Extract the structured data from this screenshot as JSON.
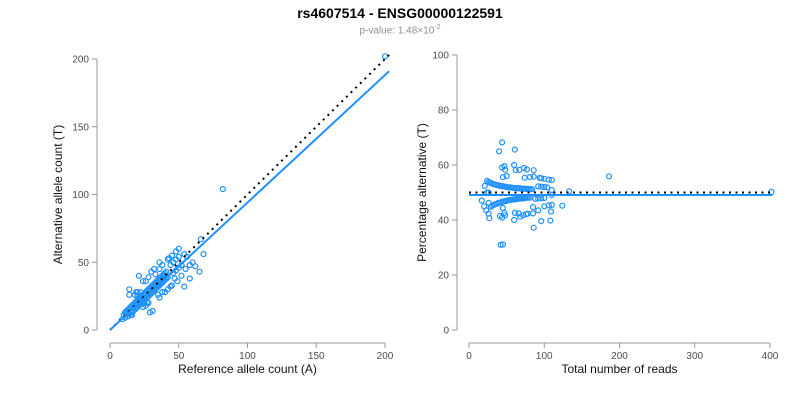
{
  "header": {
    "title": "rs4607514 - ENSG00000122591",
    "subtitle_prefix": "p-value: 1.48×10",
    "subtitle_exponent": "-2"
  },
  "colors": {
    "point_blue": "#1E90FF",
    "line_blue": "#1E90FF",
    "line_black": "#000000",
    "axis_gray": "#999999",
    "tick_label_gray": "#4d4d4d",
    "subtitle_gray": "#8f8f8f"
  },
  "chart_data": [
    {
      "type": "scatter",
      "name": "allele-count-scatter",
      "xlabel": "Reference allele count (A)",
      "ylabel": "Alternative allele count (T)",
      "xlim": [
        0,
        200
      ],
      "ylim": [
        0,
        200
      ],
      "xticks": [
        0,
        50,
        100,
        150,
        200
      ],
      "yticks": [
        0,
        50,
        100,
        150,
        200
      ],
      "grid": false,
      "legend": "none",
      "marker": {
        "shape": "open-circle",
        "color": "#1E90FF",
        "radius": 2.5
      },
      "lines": [
        {
          "name": "identity-line",
          "style": "dotted",
          "color": "#000000",
          "points": [
            [
              0,
              0
            ],
            [
              203,
              203
            ]
          ]
        },
        {
          "name": "fit-line",
          "style": "solid",
          "color": "#1E90FF",
          "points": [
            [
              0,
              0
            ],
            [
              203,
              191
            ]
          ]
        }
      ],
      "points": [
        [
          9,
          8
        ],
        [
          10,
          11
        ],
        [
          11,
          9
        ],
        [
          12,
          12
        ],
        [
          13,
          10
        ],
        [
          12,
          14
        ],
        [
          14,
          12
        ],
        [
          13,
          15
        ],
        [
          15,
          11
        ],
        [
          14,
          16
        ],
        [
          16,
          13
        ],
        [
          15,
          17
        ],
        [
          17,
          14
        ],
        [
          16,
          18
        ],
        [
          18,
          15
        ],
        [
          17,
          19
        ],
        [
          19,
          16
        ],
        [
          18,
          20
        ],
        [
          20,
          17
        ],
        [
          19,
          21
        ],
        [
          21,
          18
        ],
        [
          20,
          22
        ],
        [
          16,
          11
        ],
        [
          11,
          13
        ],
        [
          13,
          13
        ],
        [
          22,
          19
        ],
        [
          21,
          23
        ],
        [
          23,
          20
        ],
        [
          22,
          24
        ],
        [
          24,
          21
        ],
        [
          23,
          25
        ],
        [
          25,
          22
        ],
        [
          24,
          26
        ],
        [
          26,
          23
        ],
        [
          25,
          27
        ],
        [
          27,
          24
        ],
        [
          26,
          28
        ],
        [
          28,
          25
        ],
        [
          27,
          29
        ],
        [
          29,
          26
        ],
        [
          28,
          30
        ],
        [
          30,
          27
        ],
        [
          29,
          31
        ],
        [
          25,
          20
        ],
        [
          20,
          25
        ],
        [
          27,
          20
        ],
        [
          20,
          28
        ],
        [
          29,
          13
        ],
        [
          14,
          30
        ],
        [
          24,
          17
        ],
        [
          18,
          26
        ],
        [
          26,
          18
        ],
        [
          19,
          28
        ],
        [
          28,
          20
        ],
        [
          22,
          28
        ],
        [
          31,
          28
        ],
        [
          30,
          32
        ],
        [
          32,
          29
        ],
        [
          31,
          33
        ],
        [
          33,
          30
        ],
        [
          32,
          34
        ],
        [
          34,
          31
        ],
        [
          33,
          35
        ],
        [
          35,
          32
        ],
        [
          34,
          36
        ],
        [
          36,
          33
        ],
        [
          35,
          37
        ],
        [
          37,
          34
        ],
        [
          36,
          38
        ],
        [
          38,
          35
        ],
        [
          37,
          39
        ],
        [
          39,
          36
        ],
        [
          38,
          40
        ],
        [
          40,
          37
        ],
        [
          39,
          41
        ],
        [
          41,
          38
        ],
        [
          40,
          42
        ],
        [
          42,
          39
        ],
        [
          41,
          43
        ],
        [
          35,
          26
        ],
        [
          26,
          36
        ],
        [
          38,
          28
        ],
        [
          28,
          39
        ],
        [
          42,
          30
        ],
        [
          30,
          43
        ],
        [
          44,
          32
        ],
        [
          32,
          45
        ],
        [
          36,
          45
        ],
        [
          45,
          33
        ],
        [
          40,
          28
        ],
        [
          46,
          42
        ],
        [
          44,
          48
        ],
        [
          48,
          44
        ],
        [
          46,
          50
        ],
        [
          50,
          46
        ],
        [
          48,
          52
        ],
        [
          52,
          48
        ],
        [
          50,
          54
        ],
        [
          47,
          38
        ],
        [
          38,
          48
        ],
        [
          52,
          40
        ],
        [
          42,
          52
        ],
        [
          55,
          45
        ],
        [
          45,
          55
        ],
        [
          58,
          48
        ],
        [
          48,
          58
        ],
        [
          60,
          50
        ],
        [
          50,
          60
        ],
        [
          54,
          56
        ],
        [
          56,
          54
        ],
        [
          68,
          56
        ],
        [
          66,
          67
        ],
        [
          65,
          43
        ],
        [
          58,
          38
        ],
        [
          54,
          32
        ],
        [
          43,
          53
        ],
        [
          82,
          104
        ],
        [
          200,
          202
        ],
        [
          62,
          47
        ],
        [
          31,
          14
        ],
        [
          14,
          26
        ],
        [
          21,
          40
        ],
        [
          36,
          24
        ],
        [
          24,
          36
        ],
        [
          33,
          41
        ],
        [
          36,
          50
        ],
        [
          49,
          36
        ]
      ]
    },
    {
      "type": "scatter",
      "name": "percentage-vs-reads-scatter",
      "xlabel": "Total number of reads",
      "ylabel": "Percentage alternative (T)",
      "xlim": [
        0,
        400
      ],
      "ylim": [
        0,
        100
      ],
      "xticks": [
        0,
        100,
        200,
        300,
        400
      ],
      "yticks": [
        0,
        20,
        40,
        60,
        80,
        100
      ],
      "grid": false,
      "legend": "none",
      "marker": {
        "shape": "open-circle",
        "color": "#1E90FF",
        "radius": 2.5
      },
      "lines": [
        {
          "name": "fifty-percent-line",
          "style": "dotted",
          "color": "#000000",
          "points": [
            [
              0,
              50
            ],
            [
              403,
              50
            ]
          ]
        },
        {
          "name": "mean-percentage-line",
          "style": "solid",
          "color": "#1E90FF",
          "points": [
            [
              0,
              49.1
            ],
            [
              403,
              49.1
            ]
          ]
        }
      ],
      "points": [
        [
          17,
          47.1
        ],
        [
          21,
          52.4
        ],
        [
          20,
          45
        ],
        [
          24,
          50
        ],
        [
          23,
          43.5
        ],
        [
          26,
          53.8
        ],
        [
          26,
          46.2
        ],
        [
          28,
          53.6
        ],
        [
          26,
          42.3
        ],
        [
          30,
          53.3
        ],
        [
          29,
          44.8
        ],
        [
          32,
          53.1
        ],
        [
          31,
          45.2
        ],
        [
          34,
          52.9
        ],
        [
          33,
          45.5
        ],
        [
          36,
          52.8
        ],
        [
          35,
          45.7
        ],
        [
          38,
          52.6
        ],
        [
          37,
          45.9
        ],
        [
          40,
          52.5
        ],
        [
          39,
          46.2
        ],
        [
          42,
          52.4
        ],
        [
          27,
          40.7
        ],
        [
          24,
          54.2
        ],
        [
          26,
          50
        ],
        [
          41,
          46.3
        ],
        [
          44,
          52.3
        ],
        [
          43,
          46.5
        ],
        [
          46,
          52.2
        ],
        [
          45,
          46.7
        ],
        [
          48,
          52.1
        ],
        [
          47,
          46.8
        ],
        [
          50,
          52
        ],
        [
          49,
          46.9
        ],
        [
          52,
          51.9
        ],
        [
          51,
          47.1
        ],
        [
          54,
          51.9
        ],
        [
          53,
          47.2
        ],
        [
          56,
          51.8
        ],
        [
          55,
          47.3
        ],
        [
          58,
          51.7
        ],
        [
          57,
          47.4
        ],
        [
          60,
          51.7
        ],
        [
          45,
          44.4
        ],
        [
          45,
          55.6
        ],
        [
          47,
          42.6
        ],
        [
          48,
          58.3
        ],
        [
          42,
          31
        ],
        [
          44,
          68.2
        ],
        [
          41,
          41.5
        ],
        [
          44,
          59.1
        ],
        [
          44,
          40.9
        ],
        [
          47,
          59.6
        ],
        [
          48,
          41.7
        ],
        [
          50,
          56
        ],
        [
          59,
          47.5
        ],
        [
          62,
          51.6
        ],
        [
          61,
          47.5
        ],
        [
          64,
          51.6
        ],
        [
          63,
          47.6
        ],
        [
          66,
          51.5
        ],
        [
          65,
          47.7
        ],
        [
          68,
          51.5
        ],
        [
          67,
          47.8
        ],
        [
          70,
          51.4
        ],
        [
          69,
          47.8
        ],
        [
          72,
          51.4
        ],
        [
          71,
          47.9
        ],
        [
          74,
          51.4
        ],
        [
          73,
          47.9
        ],
        [
          76,
          51.3
        ],
        [
          75,
          48
        ],
        [
          78,
          51.3
        ],
        [
          77,
          48.1
        ],
        [
          80,
          51.2
        ],
        [
          79,
          48.1
        ],
        [
          82,
          51.2
        ],
        [
          81,
          48.1
        ],
        [
          84,
          51.2
        ],
        [
          61,
          42.6
        ],
        [
          62,
          58.1
        ],
        [
          66,
          42.4
        ],
        [
          67,
          58.2
        ],
        [
          72,
          41.7
        ],
        [
          73,
          58.9
        ],
        [
          76,
          42.1
        ],
        [
          77,
          58.4
        ],
        [
          81,
          55.6
        ],
        [
          78,
          42.3
        ],
        [
          68,
          41.2
        ],
        [
          88,
          47.7
        ],
        [
          92,
          52.2
        ],
        [
          92,
          47.8
        ],
        [
          96,
          52.1
        ],
        [
          96,
          47.9
        ],
        [
          100,
          52
        ],
        [
          100,
          48
        ],
        [
          104,
          51.9
        ],
        [
          85,
          44.7
        ],
        [
          86,
          55.8
        ],
        [
          92,
          43.5
        ],
        [
          94,
          55.3
        ],
        [
          100,
          45
        ],
        [
          100,
          55
        ],
        [
          106,
          45.3
        ],
        [
          106,
          54.7
        ],
        [
          110,
          45.5
        ],
        [
          110,
          54.5
        ],
        [
          110,
          50.9
        ],
        [
          110,
          49.1
        ],
        [
          124,
          45.2
        ],
        [
          133,
          50.4
        ],
        [
          108,
          39.8
        ],
        [
          96,
          39.6
        ],
        [
          86,
          37.2
        ],
        [
          96,
          55.2
        ],
        [
          186,
          55.9
        ],
        [
          402,
          50.2
        ],
        [
          109,
          43.1
        ],
        [
          45,
          31.1
        ],
        [
          40,
          65
        ],
        [
          61,
          65.6
        ],
        [
          60,
          40
        ],
        [
          60,
          60
        ],
        [
          74,
          55.4
        ],
        [
          86,
          58.1
        ],
        [
          85,
          42.4
        ]
      ]
    }
  ]
}
